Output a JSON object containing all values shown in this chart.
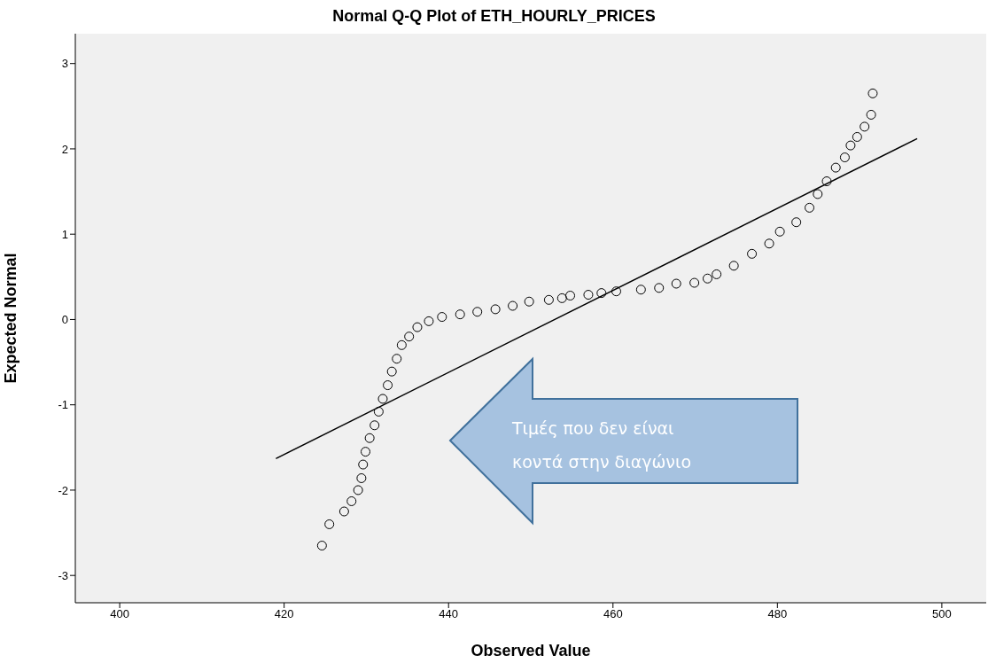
{
  "chart_data": {
    "type": "scatter",
    "title": "Normal Q-Q Plot of ETH_HOURLY_PRICES",
    "xlabel": "Observed Value",
    "ylabel": "Expected Normal",
    "xlim": [
      394.6,
      505.4
    ],
    "xticks": [
      400,
      420,
      440,
      460,
      480,
      500
    ],
    "ylim": [
      -3.32,
      3.35
    ],
    "yticks": [
      -3,
      -2,
      -1,
      0,
      1,
      2,
      3
    ],
    "series": [
      {
        "marker": "circle",
        "color": "#000000",
        "x": [
          424.6,
          425.5,
          427.3,
          428.2,
          429.0,
          429.4,
          429.6,
          429.9,
          430.4,
          431.0,
          431.5,
          432.0,
          432.6,
          433.1,
          433.7,
          434.3,
          435.2,
          436.2,
          437.6,
          439.2,
          441.4,
          443.5,
          445.7,
          447.8,
          449.8,
          452.2,
          453.8,
          454.8,
          457.0,
          458.6,
          460.4,
          463.4,
          465.6,
          467.7,
          469.9,
          471.5,
          472.6,
          474.7,
          476.9,
          479.0,
          480.3,
          482.3,
          483.9,
          484.9,
          486.0,
          487.1,
          488.2,
          488.9,
          489.7,
          490.6,
          491.4,
          491.6
        ],
        "values": [
          -2.65,
          -2.4,
          -2.25,
          -2.13,
          -2.0,
          -1.86,
          -1.7,
          -1.55,
          -1.39,
          -1.24,
          -1.08,
          -0.93,
          -0.77,
          -0.61,
          -0.46,
          -0.3,
          -0.2,
          -0.09,
          -0.02,
          0.03,
          0.06,
          0.09,
          0.12,
          0.16,
          0.21,
          0.23,
          0.25,
          0.28,
          0.29,
          0.31,
          0.33,
          0.35,
          0.37,
          0.42,
          0.43,
          0.48,
          0.53,
          0.63,
          0.77,
          0.89,
          1.03,
          1.14,
          1.31,
          1.47,
          1.62,
          1.78,
          1.9,
          2.04,
          2.14,
          2.26,
          2.4,
          2.65
        ]
      },
      {
        "type": "line",
        "color": "#000000",
        "x": [
          419.0,
          497.0
        ],
        "values": [
          -1.63,
          2.12
        ]
      }
    ],
    "annotations": [
      "Τιμές που δεν είναι κοντά στην διαγώνιο"
    ]
  }
}
